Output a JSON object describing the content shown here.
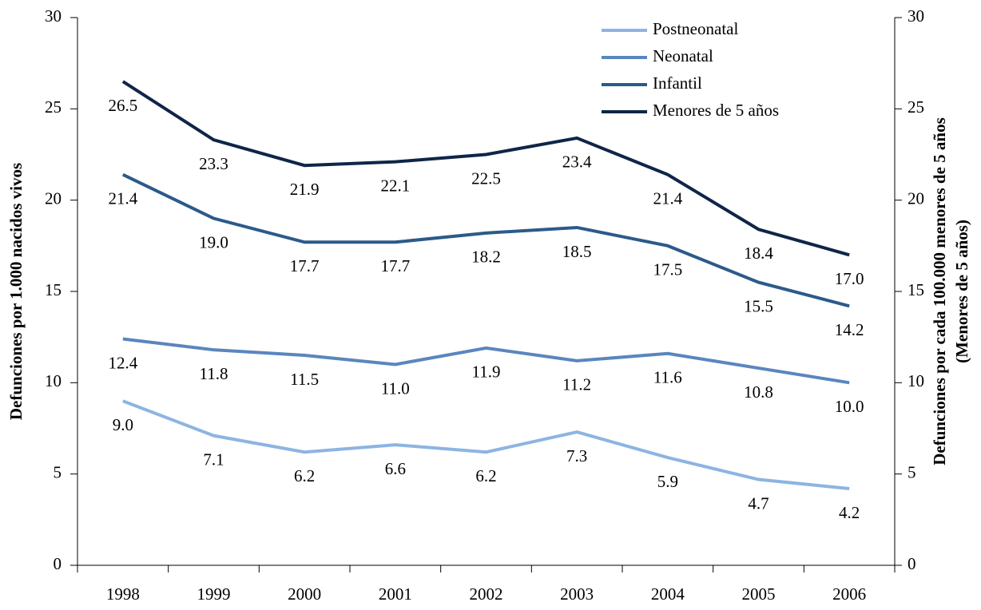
{
  "chart_data": {
    "type": "line",
    "ylabel": "Defunciones por 1.000 nacidos vivos",
    "y2label": [
      "Defunciones por cada 100.000 menores de 5 años",
      "(Menores de 5 años)"
    ],
    "categories": [
      "1998",
      "1999",
      "2000",
      "2001",
      "2002",
      "2003",
      "2004",
      "2005",
      "2006"
    ],
    "series": [
      {
        "name": "Postneonatal",
        "color": "#8db4e2",
        "values": [
          9.0,
          7.1,
          6.2,
          6.6,
          6.2,
          7.3,
          5.9,
          4.7,
          4.2
        ],
        "value_labels": [
          "9.0",
          "7.1",
          "6.2",
          "6.6",
          "6.2",
          "7.3",
          "5.9",
          "4.7",
          "4.2"
        ]
      },
      {
        "name": "Neonatal",
        "color": "#5a86be",
        "values": [
          12.4,
          11.8,
          11.5,
          11.0,
          11.9,
          11.2,
          11.6,
          10.8,
          10.0
        ],
        "value_labels": [
          "12.4",
          "11.8",
          "11.5",
          "11.0",
          "11.9",
          "11.2",
          "11.6",
          "10.8",
          "10.0"
        ]
      },
      {
        "name": "Infantil",
        "color": "#2c5a8a",
        "values": [
          21.4,
          19.0,
          17.7,
          17.7,
          18.2,
          18.5,
          17.5,
          15.5,
          14.2
        ],
        "value_labels": [
          "21.4",
          "19.0",
          "17.7",
          "17.7",
          "18.2",
          "18.5",
          "17.5",
          "15.5",
          "14.2"
        ]
      },
      {
        "name": "Menores de 5 años",
        "color": "#0f2548",
        "axis": "y2",
        "values": [
          26.5,
          23.3,
          21.9,
          22.1,
          22.5,
          23.4,
          21.4,
          18.4,
          17.0
        ],
        "value_labels": [
          "26.5",
          "23.3",
          "21.9",
          "22.1",
          "22.5",
          "23.4",
          "21.4",
          "18.4",
          "17.0"
        ]
      }
    ],
    "ylim": [
      0,
      30
    ],
    "yticks": [
      0,
      5,
      10,
      15,
      20,
      25,
      30
    ],
    "y2lim": [
      0,
      30
    ],
    "y2ticks": [
      0,
      5,
      10,
      15,
      20,
      25,
      30
    ],
    "legend": "upper right"
  }
}
